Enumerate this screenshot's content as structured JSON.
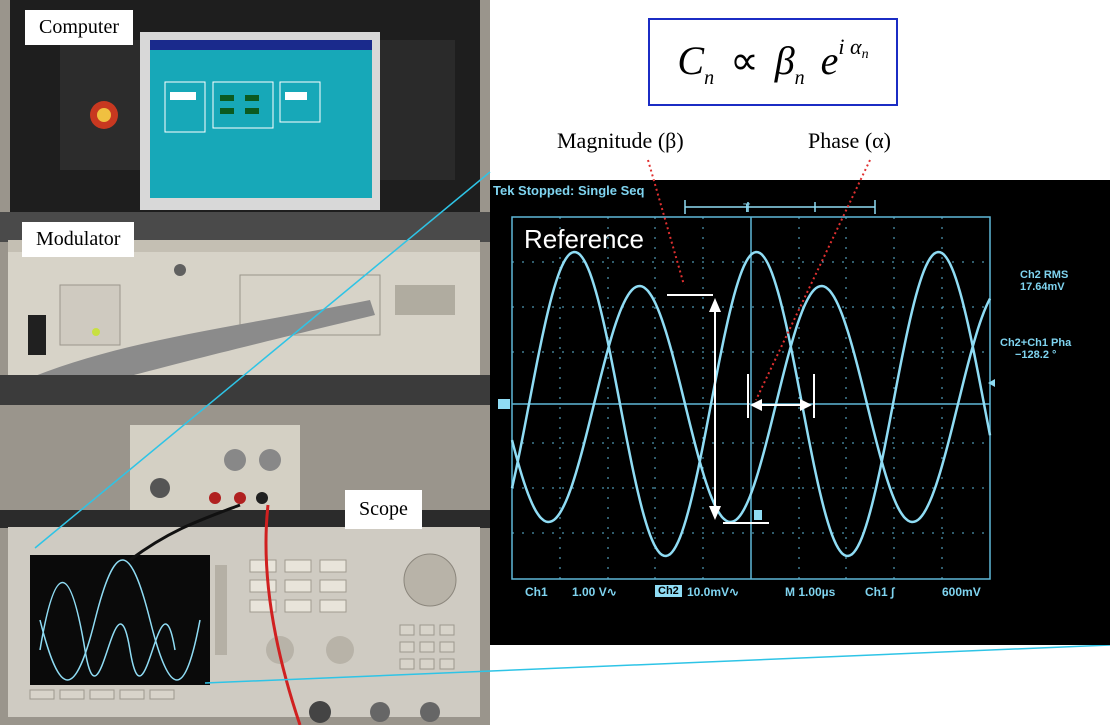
{
  "labels": {
    "computer": "Computer",
    "modulator": "Modulator",
    "scope": "Scope",
    "magnitude": "Magnitude (β)",
    "phase": "Phase (α)"
  },
  "formula": {
    "lhs": "C",
    "lhs_sub": "n",
    "prop": "∝",
    "beta": "β",
    "beta_sub": "n",
    "exp_base": "e",
    "exp_i": "i",
    "exp_alpha": "α",
    "exp_alpha_sub": "n"
  },
  "scope": {
    "header": "Tek Stopped: Single Seq",
    "trace_label": "Reference",
    "ch2_rms_label": "Ch2 RMS",
    "ch2_rms_value": "17.64mV",
    "phase_label": "Ch2+Ch1 Pha",
    "phase_value": "−128.2 °",
    "bottom_ch1": "Ch1",
    "bottom_ch1_scale": "1.00 V∿",
    "bottom_ch2_tag": "Ch2",
    "bottom_ch2_scale": "10.0mV∿",
    "bottom_time": "M 1.00µs",
    "bottom_trigger": "Ch1 ∫",
    "bottom_trigger_level": "600mV"
  },
  "colors": {
    "trace": "#8fdcf4",
    "grid": "#5fb8d8",
    "formula_border": "#1b2cc4",
    "callout_line": "#2ec4e6",
    "dotted_pointer": "#e03030"
  }
}
